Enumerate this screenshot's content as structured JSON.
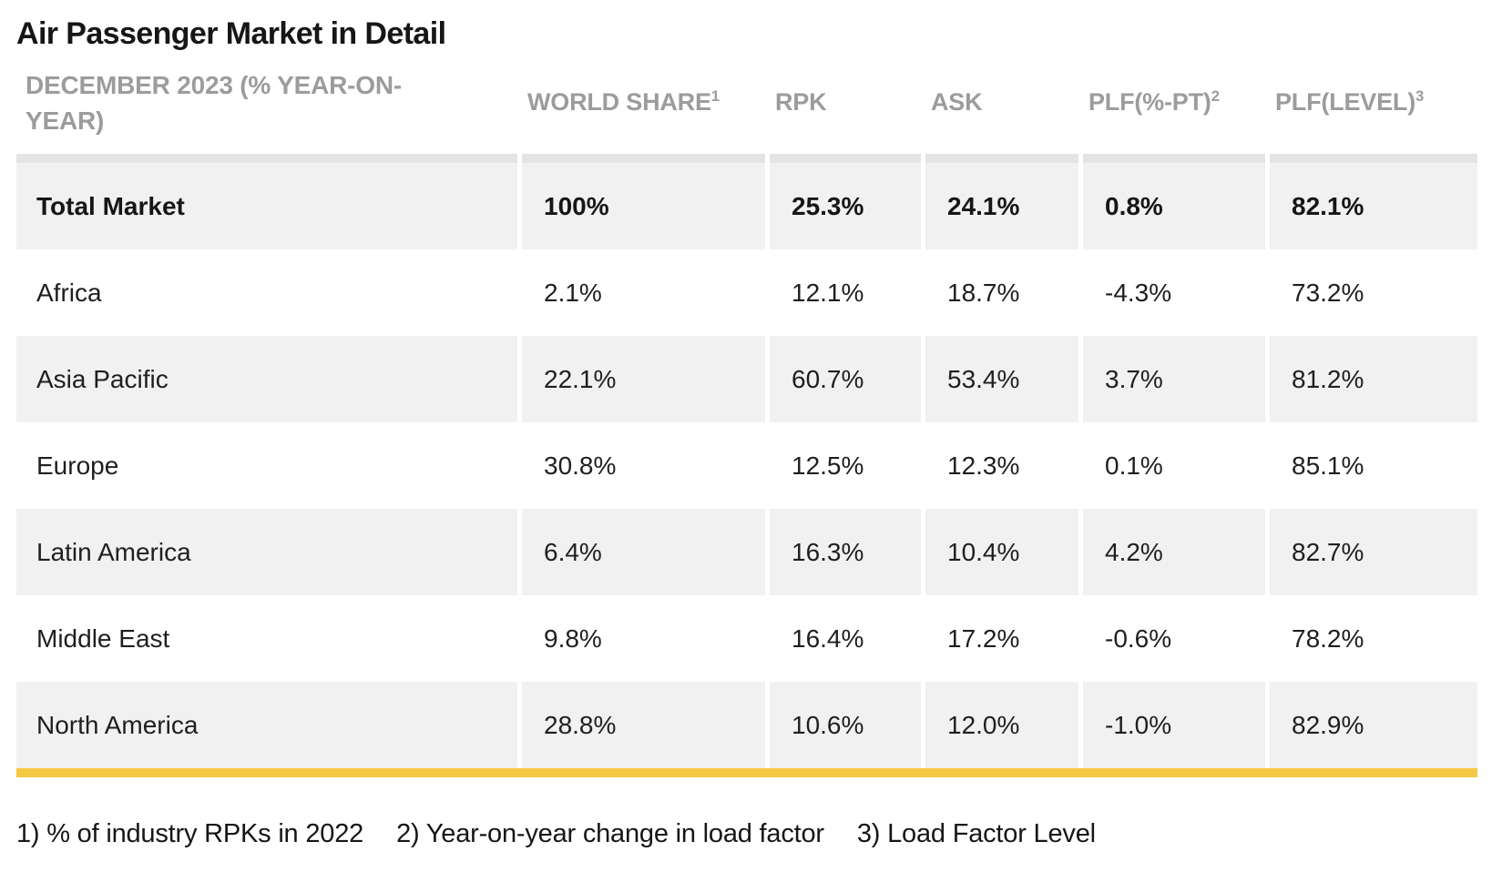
{
  "title": "Air Passenger Market in Detail",
  "table": {
    "corner_header": "DECEMBER 2023 (% YEAR-ON-YEAR)",
    "columns": [
      {
        "label": "WORLD SHARE",
        "footnote_ref": "1"
      },
      {
        "label": "RPK",
        "footnote_ref": ""
      },
      {
        "label": "ASK",
        "footnote_ref": ""
      },
      {
        "label": "PLF(%-PT)",
        "footnote_ref": "2"
      },
      {
        "label": "PLF(LEVEL)",
        "footnote_ref": "3"
      }
    ],
    "rows": [
      {
        "label": "Total Market",
        "values": [
          "100%",
          "25.3%",
          "24.1%",
          "0.8%",
          "82.1%"
        ]
      },
      {
        "label": "Africa",
        "values": [
          "2.1%",
          "12.1%",
          "18.7%",
          "-4.3%",
          "73.2%"
        ]
      },
      {
        "label": "Asia Pacific",
        "values": [
          "22.1%",
          "60.7%",
          "53.4%",
          "3.7%",
          "81.2%"
        ]
      },
      {
        "label": "Europe",
        "values": [
          "30.8%",
          "12.5%",
          "12.3%",
          "0.1%",
          "85.1%"
        ]
      },
      {
        "label": "Latin America",
        "values": [
          "6.4%",
          "16.3%",
          "10.4%",
          "4.2%",
          "82.7%"
        ]
      },
      {
        "label": "Middle East",
        "values": [
          "9.8%",
          "16.4%",
          "17.2%",
          "-0.6%",
          "78.2%"
        ]
      },
      {
        "label": "North America",
        "values": [
          "28.8%",
          "10.6%",
          "12.0%",
          "-1.0%",
          "82.9%"
        ]
      }
    ]
  },
  "footnotes": [
    "1) % of industry RPKs in 2022",
    "2) Year-on-year change in load factor",
    "3) Load Factor Level"
  ],
  "colors": {
    "accent_yellow": "#F5C843",
    "row_shade": "#F1F1F1",
    "header_strip": "#E4E4E4",
    "header_text": "#9C9C9C",
    "body_text": "#1F1F1F"
  },
  "chart_data": {
    "type": "table",
    "title": "Air Passenger Market in Detail",
    "period": "DECEMBER 2023 (% YEAR-ON-YEAR)",
    "columns": [
      "WORLD SHARE",
      "RPK",
      "ASK",
      "PLF(%-PT)",
      "PLF(LEVEL)"
    ],
    "rows": [
      {
        "region": "Total Market",
        "world_share": 100,
        "rpk": 25.3,
        "ask": 24.1,
        "plf_pt": 0.8,
        "plf_level": 82.1
      },
      {
        "region": "Africa",
        "world_share": 2.1,
        "rpk": 12.1,
        "ask": 18.7,
        "plf_pt": -4.3,
        "plf_level": 73.2
      },
      {
        "region": "Asia Pacific",
        "world_share": 22.1,
        "rpk": 60.7,
        "ask": 53.4,
        "plf_pt": 3.7,
        "plf_level": 81.2
      },
      {
        "region": "Europe",
        "world_share": 30.8,
        "rpk": 12.5,
        "ask": 12.3,
        "plf_pt": 0.1,
        "plf_level": 85.1
      },
      {
        "region": "Latin America",
        "world_share": 6.4,
        "rpk": 16.3,
        "ask": 10.4,
        "plf_pt": 4.2,
        "plf_level": 82.7
      },
      {
        "region": "Middle East",
        "world_share": 9.8,
        "rpk": 16.4,
        "ask": 17.2,
        "plf_pt": -0.6,
        "plf_level": 78.2
      },
      {
        "region": "North America",
        "world_share": 28.8,
        "rpk": 10.6,
        "ask": 12.0,
        "plf_pt": -1.0,
        "plf_level": 82.9
      }
    ],
    "units": "percent",
    "notes": [
      "1) % of industry RPKs in 2022",
      "2) Year-on-year change in load factor",
      "3) Load Factor Level"
    ]
  }
}
